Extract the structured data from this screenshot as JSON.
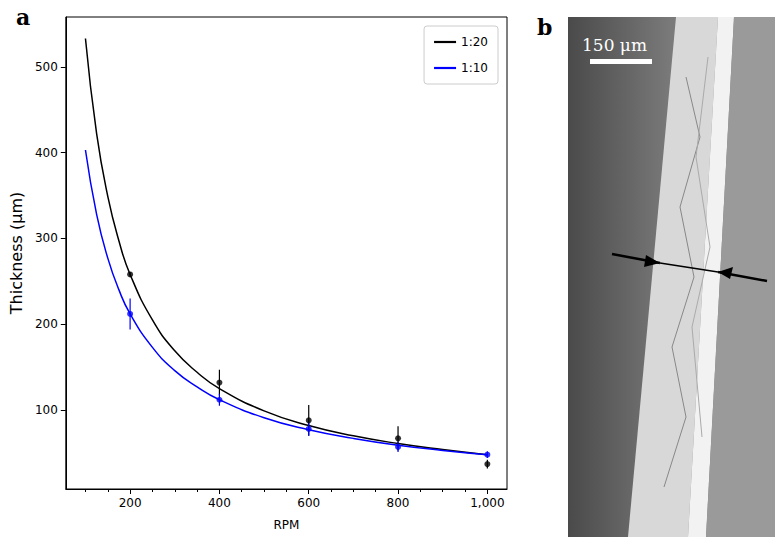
{
  "chart_data": {
    "type": "line",
    "panel": "a",
    "x_label": "RPM",
    "y_label": "Thickness (μm)",
    "xlim": [
      56,
      1044
    ],
    "xticks": [
      200,
      400,
      600,
      800,
      1000
    ],
    "ylim": [
      8,
      558
    ],
    "yticks": [
      100,
      200,
      300,
      400,
      500
    ],
    "grid": false,
    "legend": "upper right",
    "series": [
      {
        "name": "1:20",
        "color": "#000000",
        "line_style": "solid",
        "marker": "circle",
        "x": [
          100,
          125,
          150,
          175,
          200,
          250,
          300,
          350,
          400,
          500,
          600,
          700,
          800,
          900,
          1000
        ],
        "values": [
          533,
          422,
          349,
          297,
          258,
          205,
          169,
          144,
          125,
          99,
          82,
          70,
          61,
          54,
          48
        ],
        "points_x": [
          200,
          400,
          600,
          800,
          1000
        ],
        "points": [
          258,
          132,
          88,
          67,
          37
        ],
        "errors": [
          3,
          15,
          18,
          14,
          5
        ]
      },
      {
        "name": "1:10",
        "color": "#0000ff",
        "line_style": "solid",
        "marker": "circle",
        "x": [
          100,
          125,
          150,
          175,
          200,
          250,
          300,
          350,
          400,
          500,
          600,
          700,
          800,
          900,
          1000
        ],
        "values": [
          403,
          328,
          277,
          240,
          212,
          173,
          146,
          127,
          112,
          91,
          77,
          67,
          59,
          53,
          48
        ],
        "points_x": [
          200,
          400,
          600,
          800,
          1000
        ],
        "points": [
          212,
          112,
          78,
          57,
          48
        ],
        "errors": [
          18,
          7,
          8,
          6,
          4
        ]
      }
    ]
  },
  "image_panel": {
    "panel": "b",
    "scale_bar": "150 μm"
  }
}
